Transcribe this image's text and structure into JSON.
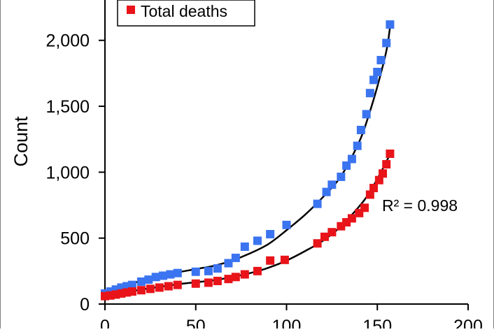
{
  "chart_data": {
    "type": "scatter",
    "title": "",
    "xlabel": "",
    "ylabel": "Count",
    "xlim": [
      0,
      200
    ],
    "ylim": [
      0,
      2200
    ],
    "x_ticks": [
      "0",
      "50",
      "100",
      "150",
      "200"
    ],
    "y_ticks": [
      "0",
      "500",
      "1,000",
      "1,500",
      "2,000"
    ],
    "x_tick_values": [
      0,
      50,
      100,
      150,
      200
    ],
    "y_tick_values": [
      0,
      500,
      1000,
      1500,
      2000
    ],
    "grid": false,
    "legend_position": "top-left",
    "annotation": "R² = 0.998",
    "series": [
      {
        "name": "",
        "color": "#3b74f0",
        "marker": "square",
        "points": [
          [
            0,
            80
          ],
          [
            3,
            95
          ],
          [
            6,
            110
          ],
          [
            9,
            125
          ],
          [
            12,
            135
          ],
          [
            15,
            145
          ],
          [
            20,
            170
          ],
          [
            24,
            185
          ],
          [
            28,
            205
          ],
          [
            32,
            215
          ],
          [
            36,
            225
          ],
          [
            40,
            235
          ],
          [
            50,
            245
          ],
          [
            57,
            250
          ],
          [
            62,
            270
          ],
          [
            68,
            310
          ],
          [
            72,
            350
          ],
          [
            77,
            435
          ],
          [
            84,
            480
          ],
          [
            91,
            530
          ],
          [
            100,
            600
          ],
          [
            117,
            760
          ],
          [
            122,
            850
          ],
          [
            125,
            905
          ],
          [
            130,
            965
          ],
          [
            133,
            1050
          ],
          [
            136,
            1100
          ],
          [
            139,
            1200
          ],
          [
            141,
            1320
          ],
          [
            144,
            1440
          ],
          [
            146,
            1600
          ],
          [
            148,
            1700
          ],
          [
            150,
            1760
          ],
          [
            152,
            1850
          ],
          [
            155,
            1980
          ],
          [
            157,
            2120
          ]
        ],
        "trend": [
          [
            0,
            100
          ],
          [
            10,
            140
          ],
          [
            20,
            175
          ],
          [
            30,
            210
          ],
          [
            40,
            240
          ],
          [
            50,
            265
          ],
          [
            60,
            290
          ],
          [
            70,
            330
          ],
          [
            80,
            385
          ],
          [
            90,
            455
          ],
          [
            100,
            560
          ],
          [
            110,
            675
          ],
          [
            120,
            810
          ],
          [
            130,
            970
          ],
          [
            140,
            1230
          ],
          [
            145,
            1420
          ],
          [
            150,
            1650
          ],
          [
            155,
            1920
          ],
          [
            157,
            2100
          ]
        ]
      },
      {
        "name": "Total deaths",
        "color": "#e8141a",
        "marker": "square",
        "points": [
          [
            0,
            60
          ],
          [
            3,
            65
          ],
          [
            6,
            72
          ],
          [
            9,
            80
          ],
          [
            12,
            88
          ],
          [
            15,
            95
          ],
          [
            20,
            105
          ],
          [
            25,
            115
          ],
          [
            30,
            125
          ],
          [
            35,
            135
          ],
          [
            40,
            145
          ],
          [
            50,
            155
          ],
          [
            57,
            162
          ],
          [
            62,
            175
          ],
          [
            68,
            190
          ],
          [
            72,
            205
          ],
          [
            77,
            225
          ],
          [
            84,
            250
          ],
          [
            91,
            330
          ],
          [
            99,
            335
          ],
          [
            117,
            460
          ],
          [
            121,
            510
          ],
          [
            125,
            545
          ],
          [
            130,
            590
          ],
          [
            133,
            620
          ],
          [
            136,
            650
          ],
          [
            140,
            690
          ],
          [
            143,
            730
          ],
          [
            146,
            830
          ],
          [
            148,
            880
          ],
          [
            151,
            940
          ],
          [
            153,
            990
          ],
          [
            155,
            1060
          ],
          [
            157,
            1140
          ]
        ],
        "trend": [
          [
            0,
            60
          ],
          [
            10,
            85
          ],
          [
            20,
            110
          ],
          [
            30,
            130
          ],
          [
            40,
            150
          ],
          [
            50,
            165
          ],
          [
            60,
            180
          ],
          [
            70,
            205
          ],
          [
            80,
            235
          ],
          [
            90,
            275
          ],
          [
            100,
            330
          ],
          [
            110,
            400
          ],
          [
            120,
            480
          ],
          [
            130,
            590
          ],
          [
            140,
            740
          ],
          [
            145,
            830
          ],
          [
            150,
            950
          ],
          [
            155,
            1080
          ],
          [
            157,
            1140
          ]
        ]
      }
    ]
  }
}
